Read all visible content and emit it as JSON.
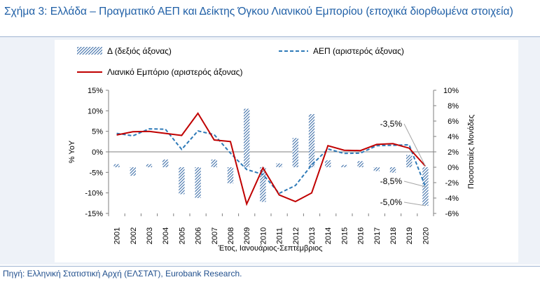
{
  "title": "Σχήμα 3: Ελλάδα – Πραγματικό ΑΕΠ και Δείκτης Όγκου Λιανικού Εμπορίου (εποχικά διορθωμένα στοιχεία)",
  "source": "Πηγή: Ελληνική Στατιστική Αρχή (ΕΛΣΤΑΤ), Eurobank Research.",
  "colors": {
    "title": "#1f5fa6",
    "delta": "#3d6ea8",
    "gdp": "#2e7ab8",
    "retail": "#c00000"
  },
  "chart_data": {
    "type": "bar",
    "title": "",
    "xlabel": "Έτος, Ιανουάριος-Σεπτέμβριος",
    "ylabel": "% YoY",
    "y2label": "Ποσοστιαίες Μονάδες",
    "categories": [
      "2001",
      "2002",
      "2003",
      "2004",
      "2005",
      "2006",
      "2007",
      "2008",
      "2009",
      "2010",
      "2011",
      "2012",
      "2013",
      "2014",
      "2015",
      "2016",
      "2017",
      "2018",
      "2019",
      "2020"
    ],
    "ylim": [
      -15,
      15
    ],
    "y2lim": [
      -6,
      10
    ],
    "yticks": [
      "15%",
      "10%",
      "5%",
      "0%",
      "-5%",
      "-10%",
      "-15%"
    ],
    "y2ticks": [
      "10%",
      "8%",
      "6%",
      "4%",
      "2%",
      "0%",
      "-2%",
      "-4%",
      "-6%"
    ],
    "legend_position": "top",
    "grid": false,
    "series": [
      {
        "name": "Δ (δεξιός άξονας)",
        "type": "bar",
        "axis": "right",
        "values": [
          0.4,
          -1.1,
          0.4,
          1.0,
          -3.5,
          -4.0,
          1.0,
          -2.1,
          7.6,
          -4.5,
          0.5,
          3.8,
          6.9,
          0.9,
          0.3,
          0.8,
          -0.5,
          -0.7,
          1.6,
          -5.0
        ]
      },
      {
        "name": "ΑΕΠ (αριστερός άξονας)",
        "type": "line",
        "axis": "left",
        "style": "dashed",
        "values": [
          4.5,
          3.9,
          5.6,
          5.5,
          0.6,
          5.1,
          4.2,
          -0.3,
          -4.3,
          -5.5,
          -10.1,
          -8.2,
          -3.2,
          0.7,
          -0.4,
          -0.3,
          1.5,
          1.6,
          1.7,
          -8.5
        ]
      },
      {
        "name": "Λιανικό Εμπόριο (αριστερός άξονας)",
        "type": "line",
        "axis": "left",
        "style": "solid",
        "values": [
          4.1,
          4.9,
          5.0,
          4.5,
          4.0,
          9.4,
          2.9,
          2.5,
          -12.7,
          -3.9,
          -10.5,
          -12.1,
          -10.0,
          1.5,
          0.4,
          0.3,
          1.8,
          2.0,
          0.9,
          -3.5
        ]
      }
    ],
    "annotations": [
      "-3,5%",
      "-8,5%",
      "-5,0%"
    ]
  }
}
